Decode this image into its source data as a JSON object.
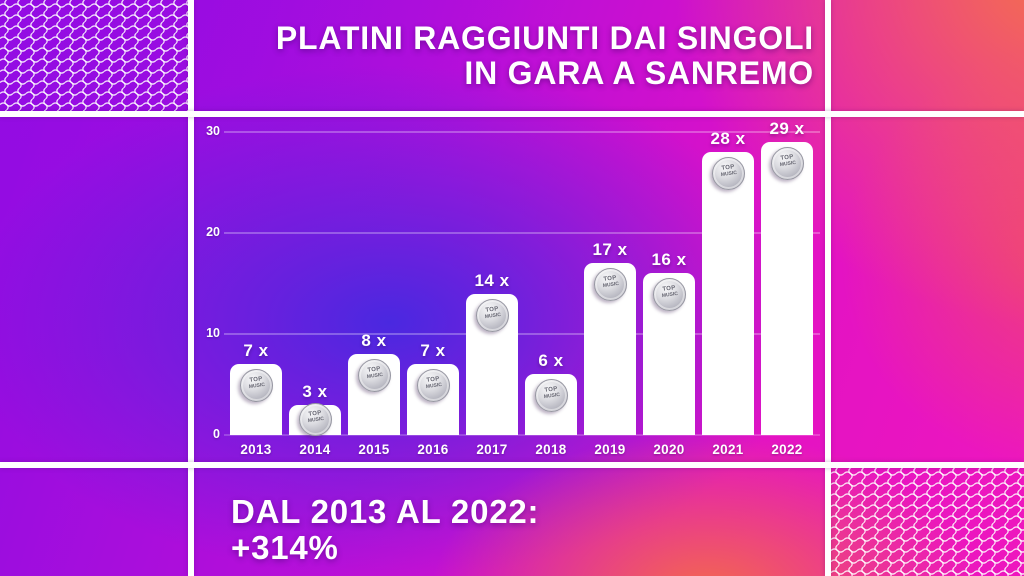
{
  "title": {
    "line1": "PLATINI RAGGIUNTI DAI SINGOLI",
    "line2": "IN GARA A SANREMO"
  },
  "footer": {
    "line1": "DAL 2013 AL 2022:",
    "line2": "+314%"
  },
  "medal": {
    "line1": "TOP",
    "line2": "MUSIC"
  },
  "chart_data": {
    "type": "bar",
    "title": "PLATINI RAGGIUNTI DAI SINGOLI IN GARA A SANREMO",
    "categories": [
      "2013",
      "2014",
      "2015",
      "2016",
      "2017",
      "2018",
      "2019",
      "2020",
      "2021",
      "2022"
    ],
    "values": [
      7,
      3,
      8,
      7,
      14,
      6,
      17,
      16,
      28,
      29
    ],
    "bar_labels": [
      "7 x",
      "3 x",
      "8 x",
      "7 x",
      "14 x",
      "6 x",
      "17 x",
      "16 x",
      "28 x",
      "29 x"
    ],
    "xlabel": "",
    "ylabel": "",
    "ylim": [
      0,
      30
    ],
    "yticks": [
      0,
      10,
      20,
      30
    ],
    "grid": "horizontal-only",
    "legend": "none",
    "bar_color": "#ffffff",
    "annotation": "DAL 2013 AL 2022: +314%"
  },
  "palette": {
    "purple": "#9410e2",
    "blue": "#4a28e0",
    "magenta": "#e212c4",
    "coral": "#f4714b",
    "bar_white": "#ffffff"
  }
}
